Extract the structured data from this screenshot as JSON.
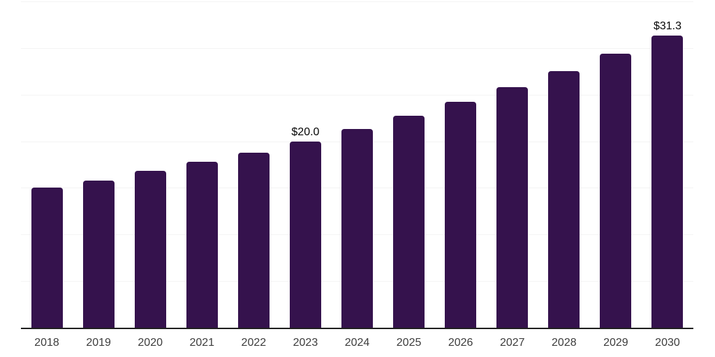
{
  "chart_data": {
    "type": "bar",
    "categories": [
      "2018",
      "2019",
      "2020",
      "2021",
      "2022",
      "2023",
      "2024",
      "2025",
      "2026",
      "2027",
      "2028",
      "2029",
      "2030"
    ],
    "values": [
      15.0,
      15.8,
      16.8,
      17.8,
      18.8,
      20.0,
      21.3,
      22.7,
      24.2,
      25.8,
      27.5,
      29.4,
      31.3
    ],
    "bar_labels": [
      "",
      "",
      "",
      "",
      "",
      "$20.0",
      "",
      "",
      "",
      "",
      "",
      "",
      "$31.3"
    ],
    "title": "",
    "xlabel": "",
    "ylabel": "",
    "ylim": [
      0,
      35
    ],
    "gridline_step": 5,
    "grid": true,
    "legend_position": "none",
    "colors": {
      "bar": "#35124D",
      "axis_line": "#1f1f1f",
      "gridline": "#f4f4f4",
      "tick_label": "#3d3d3d",
      "data_label": "#050505",
      "background": "#ffffff"
    }
  }
}
